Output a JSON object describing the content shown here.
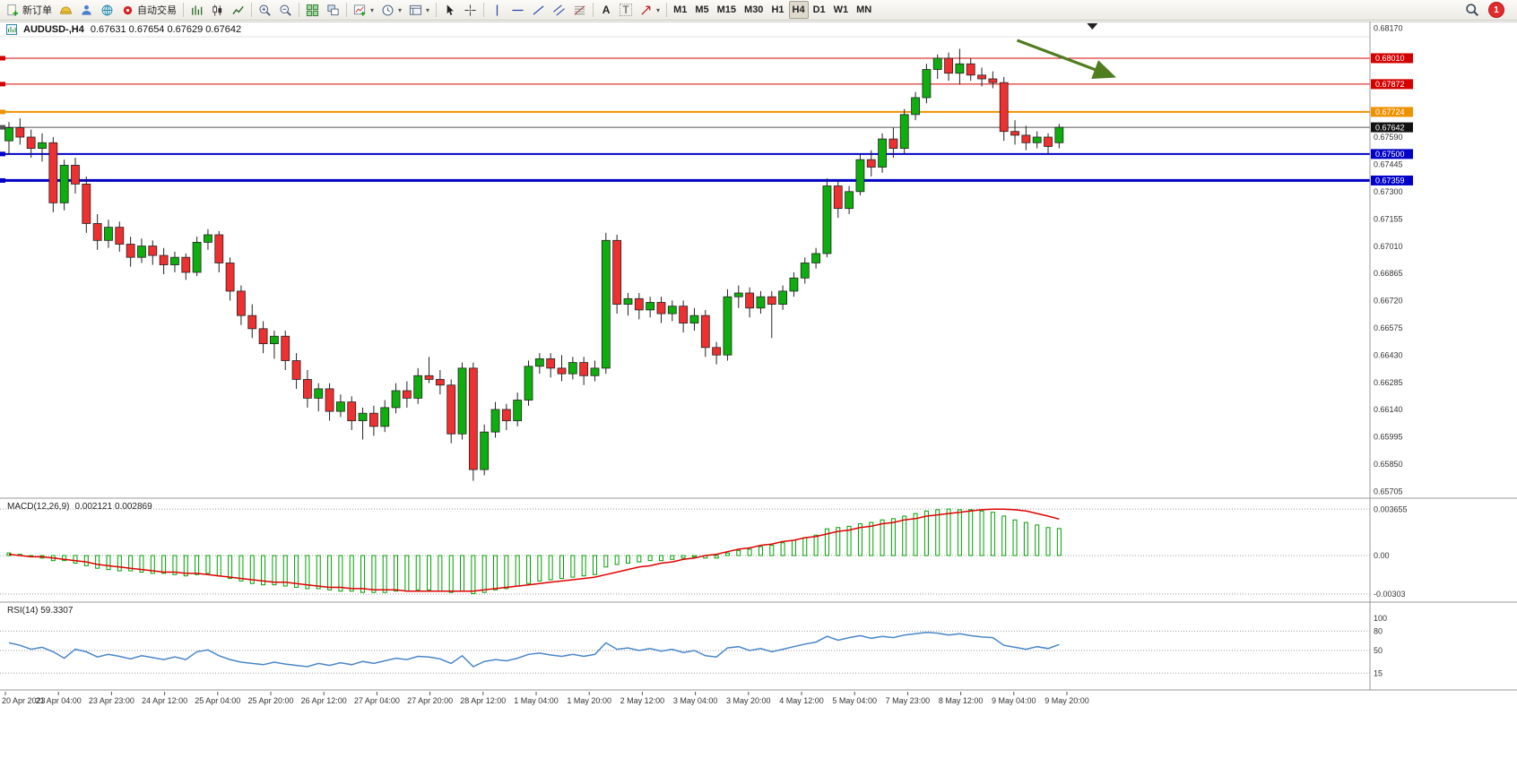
{
  "toolbar": {
    "new_order": "新订单",
    "auto_trading": "自动交易",
    "text_tool": "A",
    "label_tool": "T",
    "timeframes": [
      "M1",
      "M5",
      "M15",
      "M30",
      "H1",
      "H4",
      "D1",
      "W1",
      "MN"
    ],
    "active_timeframe": "H4",
    "badge_count": "1",
    "icon_names": [
      "new-order-icon",
      "hard-hat-icon",
      "profile-icon",
      "globe-icon",
      "auto-trading-icon",
      "bar-chart-icon",
      "candlestick-chart-icon",
      "line-chart-icon",
      "zoom-in-icon",
      "zoom-out-icon",
      "tile-windows-icon",
      "cascade-windows-icon",
      "indicators-icon",
      "periods-clock-icon",
      "chart-properties-icon",
      "cursor-icon",
      "crosshair-icon",
      "vertical-line-icon",
      "horizontal-line-icon",
      "trendline-icon",
      "channel-icon",
      "fibonacci-icon",
      "text-icon",
      "label-icon",
      "arrows-icon",
      "search-icon"
    ]
  },
  "chart_data": {
    "type": "candlestick",
    "symbol": "AUDUSD-,H4",
    "quote": "0.67631 0.67654 0.67629 0.67642",
    "price_panel": {
      "y_axis": [
        {
          "v": 0.6817,
          "label": "0.68170",
          "style": "plain"
        },
        {
          "v": 0.6801,
          "label": "0.68010",
          "style": "red"
        },
        {
          "v": 0.67872,
          "label": "0.67872",
          "style": "red"
        },
        {
          "v": 0.67724,
          "label": "0.67724",
          "style": "orange"
        },
        {
          "v": 0.67642,
          "label": "0.67642",
          "style": "black"
        },
        {
          "v": 0.6759,
          "label": "0.67590",
          "style": "plain"
        },
        {
          "v": 0.675,
          "label": "0.67500",
          "style": "blue"
        },
        {
          "v": 0.67445,
          "label": "0.67445",
          "style": "plain"
        },
        {
          "v": 0.67359,
          "label": "0.67359",
          "style": "blue"
        },
        {
          "v": 0.673,
          "label": "0.67300",
          "style": "plain"
        },
        {
          "v": 0.67155,
          "label": "0.67155",
          "style": "plain"
        },
        {
          "v": 0.6701,
          "label": "0.67010",
          "style": "plain"
        },
        {
          "v": 0.66865,
          "label": "0.66865",
          "style": "plain"
        },
        {
          "v": 0.6672,
          "label": "0.66720",
          "style": "plain"
        },
        {
          "v": 0.66575,
          "label": "0.66575",
          "style": "plain"
        },
        {
          "v": 0.6643,
          "label": "0.66430",
          "style": "plain"
        },
        {
          "v": 0.66285,
          "label": "0.66285",
          "style": "plain"
        },
        {
          "v": 0.6614,
          "label": "0.66140",
          "style": "plain"
        },
        {
          "v": 0.65995,
          "label": "0.65995",
          "style": "plain"
        },
        {
          "v": 0.6585,
          "label": "0.65850",
          "style": "plain"
        },
        {
          "v": 0.65705,
          "label": "0.65705",
          "style": "plain"
        }
      ],
      "levels": [
        {
          "v": 0.6801,
          "color": "#d40000",
          "w": 1
        },
        {
          "v": 0.67872,
          "color": "#d40000",
          "w": 1
        },
        {
          "v": 0.67724,
          "color": "#ef9200",
          "w": 2
        },
        {
          "v": 0.67642,
          "color": "#555555",
          "w": 1
        },
        {
          "v": 0.675,
          "color": "#0000c8",
          "w": 2
        },
        {
          "v": 0.67359,
          "color": "#0000c8",
          "w": 3
        }
      ],
      "arrow": {
        "from": [
          91.2,
          0.68105
        ],
        "to": [
          99.8,
          0.67915
        ],
        "color": "#4f7d20"
      },
      "shift_marker_index": 98,
      "candles": [
        [
          0.6757,
          0.6767,
          0.675,
          0.6764
        ],
        [
          0.6764,
          0.6769,
          0.6755,
          0.6759
        ],
        [
          0.6759,
          0.6763,
          0.6748,
          0.6753
        ],
        [
          0.6753,
          0.6761,
          0.6746,
          0.6756
        ],
        [
          0.6756,
          0.6759,
          0.6719,
          0.6724
        ],
        [
          0.6724,
          0.6747,
          0.672,
          0.6744
        ],
        [
          0.6744,
          0.6748,
          0.6729,
          0.6734
        ],
        [
          0.6734,
          0.6738,
          0.6708,
          0.6713
        ],
        [
          0.6713,
          0.6718,
          0.6699,
          0.6704
        ],
        [
          0.6704,
          0.6715,
          0.67,
          0.6711
        ],
        [
          0.6711,
          0.6714,
          0.6698,
          0.6702
        ],
        [
          0.6702,
          0.6706,
          0.669,
          0.6695
        ],
        [
          0.6695,
          0.6705,
          0.6692,
          0.6701
        ],
        [
          0.6701,
          0.6704,
          0.6691,
          0.6696
        ],
        [
          0.6696,
          0.67,
          0.6686,
          0.6691
        ],
        [
          0.6691,
          0.6698,
          0.6687,
          0.6695
        ],
        [
          0.6695,
          0.6697,
          0.6683,
          0.6687
        ],
        [
          0.6687,
          0.6706,
          0.6685,
          0.6703
        ],
        [
          0.6703,
          0.671,
          0.6699,
          0.6707
        ],
        [
          0.6707,
          0.6709,
          0.6687,
          0.6692
        ],
        [
          0.6692,
          0.6695,
          0.6672,
          0.6677
        ],
        [
          0.6677,
          0.668,
          0.6659,
          0.6664
        ],
        [
          0.6664,
          0.667,
          0.6652,
          0.6657
        ],
        [
          0.6657,
          0.6661,
          0.6644,
          0.6649
        ],
        [
          0.6649,
          0.6656,
          0.6641,
          0.6653
        ],
        [
          0.6653,
          0.6656,
          0.6635,
          0.664
        ],
        [
          0.664,
          0.6644,
          0.6625,
          0.663
        ],
        [
          0.663,
          0.6635,
          0.6615,
          0.662
        ],
        [
          0.662,
          0.6628,
          0.6613,
          0.6625
        ],
        [
          0.6625,
          0.6628,
          0.6608,
          0.6613
        ],
        [
          0.6613,
          0.6622,
          0.661,
          0.6618
        ],
        [
          0.6618,
          0.6621,
          0.6603,
          0.6608
        ],
        [
          0.6608,
          0.6615,
          0.6598,
          0.6612
        ],
        [
          0.6612,
          0.6616,
          0.66,
          0.6605
        ],
        [
          0.6605,
          0.6619,
          0.6602,
          0.6615
        ],
        [
          0.6615,
          0.6628,
          0.6612,
          0.6624
        ],
        [
          0.6624,
          0.6629,
          0.6615,
          0.662
        ],
        [
          0.662,
          0.6636,
          0.6617,
          0.6632
        ],
        [
          0.6632,
          0.6642,
          0.6628,
          0.663
        ],
        [
          0.663,
          0.6635,
          0.6622,
          0.6627
        ],
        [
          0.6627,
          0.663,
          0.6596,
          0.6601
        ],
        [
          0.6601,
          0.6639,
          0.6598,
          0.6636
        ],
        [
          0.6636,
          0.6639,
          0.6576,
          0.6582
        ],
        [
          0.6582,
          0.6606,
          0.6579,
          0.6602
        ],
        [
          0.6602,
          0.6618,
          0.6599,
          0.6614
        ],
        [
          0.6614,
          0.6617,
          0.6603,
          0.6608
        ],
        [
          0.6608,
          0.6623,
          0.6605,
          0.6619
        ],
        [
          0.6619,
          0.664,
          0.6616,
          0.6637
        ],
        [
          0.6637,
          0.6644,
          0.6633,
          0.6641
        ],
        [
          0.6641,
          0.6644,
          0.6631,
          0.6636
        ],
        [
          0.6636,
          0.6643,
          0.6629,
          0.6633
        ],
        [
          0.6633,
          0.6642,
          0.663,
          0.6639
        ],
        [
          0.6639,
          0.6642,
          0.6627,
          0.6632
        ],
        [
          0.6632,
          0.664,
          0.6629,
          0.6636
        ],
        [
          0.6636,
          0.6708,
          0.6633,
          0.6704
        ],
        [
          0.6704,
          0.6707,
          0.6665,
          0.667
        ],
        [
          0.667,
          0.6676,
          0.6664,
          0.6673
        ],
        [
          0.6673,
          0.6676,
          0.6662,
          0.6667
        ],
        [
          0.6667,
          0.6674,
          0.6663,
          0.6671
        ],
        [
          0.6671,
          0.6674,
          0.666,
          0.6665
        ],
        [
          0.6665,
          0.6672,
          0.6661,
          0.6669
        ],
        [
          0.6669,
          0.6672,
          0.6655,
          0.666
        ],
        [
          0.666,
          0.6668,
          0.6656,
          0.6664
        ],
        [
          0.6664,
          0.6667,
          0.6642,
          0.6647
        ],
        [
          0.6647,
          0.665,
          0.6638,
          0.6643
        ],
        [
          0.6643,
          0.6678,
          0.664,
          0.6674
        ],
        [
          0.6674,
          0.668,
          0.6668,
          0.6676
        ],
        [
          0.6676,
          0.6679,
          0.6663,
          0.6668
        ],
        [
          0.6668,
          0.6677,
          0.6665,
          0.6674
        ],
        [
          0.6674,
          0.6677,
          0.6652,
          0.667
        ],
        [
          0.667,
          0.668,
          0.6667,
          0.6677
        ],
        [
          0.6677,
          0.6687,
          0.6674,
          0.6684
        ],
        [
          0.6684,
          0.6695,
          0.6681,
          0.6692
        ],
        [
          0.6692,
          0.67,
          0.6689,
          0.6697
        ],
        [
          0.6697,
          0.6737,
          0.6695,
          0.6733
        ],
        [
          0.6733,
          0.6736,
          0.6716,
          0.6721
        ],
        [
          0.6721,
          0.6733,
          0.6718,
          0.673
        ],
        [
          0.673,
          0.675,
          0.6728,
          0.6747
        ],
        [
          0.6747,
          0.6752,
          0.6738,
          0.6743
        ],
        [
          0.6743,
          0.6761,
          0.674,
          0.6758
        ],
        [
          0.6758,
          0.6764,
          0.6748,
          0.6753
        ],
        [
          0.6753,
          0.6774,
          0.675,
          0.6771
        ],
        [
          0.6771,
          0.6783,
          0.6768,
          0.678
        ],
        [
          0.678,
          0.6798,
          0.6777,
          0.6795
        ],
        [
          0.6795,
          0.6803,
          0.679,
          0.6801
        ],
        [
          0.6801,
          0.6804,
          0.6789,
          0.6793
        ],
        [
          0.6793,
          0.6806,
          0.6787,
          0.6798
        ],
        [
          0.6798,
          0.6801,
          0.6789,
          0.6792
        ],
        [
          0.6792,
          0.6796,
          0.6786,
          0.679
        ],
        [
          0.679,
          0.6794,
          0.6785,
          0.6788
        ],
        [
          0.6788,
          0.6791,
          0.6757,
          0.6762
        ],
        [
          0.6762,
          0.6768,
          0.6755,
          0.676
        ],
        [
          0.676,
          0.6765,
          0.6752,
          0.6756
        ],
        [
          0.6756,
          0.6762,
          0.6753,
          0.6759
        ],
        [
          0.6759,
          0.6761,
          0.675,
          0.6754
        ],
        [
          0.6756,
          0.6766,
          0.6753,
          0.67642
        ]
      ]
    },
    "macd_panel": {
      "label": "MACD(12,26,9)",
      "values": "0.002121 0.002869",
      "axis_labels": [
        "0.003655",
        "0.00",
        "-0.00303"
      ],
      "axis_values": [
        0.003655,
        0,
        -0.00303
      ],
      "histogram": [
        0.0002,
        0.0001,
        -0.0001,
        -0.0002,
        -0.0004,
        -0.0004,
        -0.0006,
        -0.0008,
        -0.001,
        -0.0011,
        -0.0012,
        -0.0012,
        -0.0013,
        -0.0014,
        -0.0014,
        -0.0015,
        -0.0016,
        -0.0015,
        -0.0014,
        -0.0016,
        -0.0018,
        -0.002,
        -0.0022,
        -0.0023,
        -0.0023,
        -0.0024,
        -0.0025,
        -0.0026,
        -0.0026,
        -0.0027,
        -0.0028,
        -0.0028,
        -0.0029,
        -0.0029,
        -0.0029,
        -0.0028,
        -0.0028,
        -0.0027,
        -0.0027,
        -0.0028,
        -0.0029,
        -0.0028,
        -0.003,
        -0.0029,
        -0.0027,
        -0.0026,
        -0.0024,
        -0.0022,
        -0.002,
        -0.0019,
        -0.0018,
        -0.0017,
        -0.0016,
        -0.0015,
        -0.0009,
        -0.0007,
        -0.0006,
        -0.0005,
        -0.0004,
        -0.0004,
        -0.0003,
        -0.0002,
        -0.0001,
        -0.0002,
        -0.0002,
        0.0002,
        0.0004,
        0.0005,
        0.0007,
        0.0008,
        0.001,
        0.0012,
        0.0014,
        0.0016,
        0.0021,
        0.0022,
        0.0023,
        0.0025,
        0.0026,
        0.0028,
        0.0029,
        0.0031,
        0.0033,
        0.0035,
        0.0036,
        0.003655,
        0.0036,
        0.0036,
        0.0035,
        0.0034,
        0.0031,
        0.0028,
        0.0026,
        0.0024,
        0.0022,
        0.002121
      ],
      "signal": [
        0.0001,
        0.0,
        -0.0001,
        -0.0001,
        -0.0002,
        -0.0003,
        -0.0004,
        -0.0005,
        -0.0007,
        -0.0008,
        -0.0009,
        -0.001,
        -0.0011,
        -0.0012,
        -0.0013,
        -0.0013,
        -0.0014,
        -0.0014,
        -0.0015,
        -0.0016,
        -0.0017,
        -0.0018,
        -0.0019,
        -0.002,
        -0.0021,
        -0.0021,
        -0.0022,
        -0.0023,
        -0.0024,
        -0.0025,
        -0.0025,
        -0.0026,
        -0.0026,
        -0.0027,
        -0.0027,
        -0.0027,
        -0.0028,
        -0.0028,
        -0.0028,
        -0.0028,
        -0.0028,
        -0.0028,
        -0.0028,
        -0.0027,
        -0.0026,
        -0.0025,
        -0.0024,
        -0.0023,
        -0.0022,
        -0.0021,
        -0.002,
        -0.0019,
        -0.0018,
        -0.0017,
        -0.0015,
        -0.0013,
        -0.0011,
        -0.0009,
        -0.0008,
        -0.0006,
        -0.0005,
        -0.0003,
        -0.0002,
        0.0,
        0.0001,
        0.0003,
        0.0005,
        0.0006,
        0.0008,
        0.0009,
        0.0011,
        0.0012,
        0.0014,
        0.0015,
        0.0017,
        0.0019,
        0.002,
        0.0022,
        0.0023,
        0.0025,
        0.0026,
        0.0028,
        0.0029,
        0.0031,
        0.0032,
        0.0033,
        0.0034,
        0.0035,
        0.0036,
        0.00365,
        0.00365,
        0.0036,
        0.0035,
        0.0033,
        0.0031,
        0.002869
      ]
    },
    "rsi_panel": {
      "label": "RSI(14) 59.3307",
      "axis_labels": [
        "100",
        "80",
        "50",
        "15"
      ],
      "axis_values": [
        100,
        80,
        50,
        15
      ],
      "levels": [
        80,
        50,
        15
      ],
      "values": [
        62,
        58,
        52,
        55,
        48,
        38,
        52,
        48,
        40,
        44,
        41,
        37,
        42,
        39,
        36,
        40,
        36,
        48,
        51,
        42,
        36,
        32,
        30,
        28,
        32,
        29,
        27,
        25,
        30,
        27,
        31,
        28,
        33,
        30,
        34,
        38,
        36,
        41,
        40,
        37,
        30,
        42,
        25,
        33,
        36,
        34,
        38,
        44,
        46,
        43,
        41,
        44,
        41,
        44,
        62,
        52,
        54,
        50,
        53,
        49,
        52,
        47,
        50,
        42,
        40,
        54,
        56,
        50,
        53,
        48,
        52,
        56,
        60,
        63,
        72,
        66,
        70,
        73,
        69,
        72,
        70,
        74,
        76,
        78,
        77,
        74,
        76,
        73,
        71,
        70,
        58,
        55,
        52,
        56,
        53,
        59.3307
      ]
    },
    "time_axis": {
      "labels": [
        "20 Apr 2023",
        "21 Apr 04:00",
        "23 Apr 23:00",
        "24 Apr 12:00",
        "25 Apr 04:00",
        "25 Apr 20:00",
        "26 Apr 12:00",
        "27 Apr 04:00",
        "27 Apr 20:00",
        "28 Apr 12:00",
        "1 May 04:00",
        "1 May 20:00",
        "2 May 12:00",
        "3 May 04:00",
        "3 May 20:00",
        "4 May 12:00",
        "5 May 04:00",
        "7 May 23:00",
        "8 May 12:00",
        "9 May 04:00",
        "9 May 20:00"
      ]
    }
  }
}
